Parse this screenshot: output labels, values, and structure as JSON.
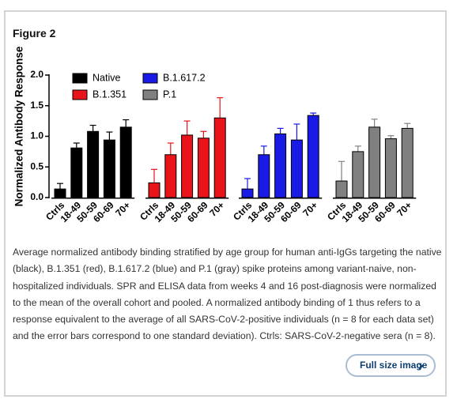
{
  "figure_label": "Figure 2",
  "chart_data": {
    "type": "grouped-bar",
    "y_label": "Normalized Antibody Response",
    "categories": [
      "Ctrls",
      "18-49",
      "50-59",
      "60-69",
      "70+"
    ],
    "ylim": [
      0,
      2.0
    ],
    "yticks": [
      {
        "value": 0,
        "label": "0.0"
      },
      0.5,
      {
        "value": 1,
        "label": "1.0"
      },
      1.5,
      {
        "value": 2,
        "label": "2.0"
      }
    ],
    "series": [
      {
        "name": "Native",
        "color": "#000000",
        "values": [
          0.14,
          0.81,
          1.08,
          0.94,
          1.15
        ],
        "errors": [
          0.09,
          0.08,
          0.1,
          0.13,
          0.12
        ]
      },
      {
        "name": "B.1.351",
        "color": "#e8141a",
        "values": [
          0.24,
          0.7,
          1.02,
          0.97,
          1.3
        ],
        "errors": [
          0.22,
          0.19,
          0.23,
          0.11,
          0.33
        ]
      },
      {
        "name": "B.1.617.2",
        "color": "#1a1ae6",
        "values": [
          0.14,
          0.7,
          1.04,
          0.94,
          1.34
        ],
        "errors": [
          0.17,
          0.14,
          0.09,
          0.26,
          0.04
        ]
      },
      {
        "name": "P.1",
        "color": "#808080",
        "values": [
          0.27,
          0.75,
          1.15,
          0.96,
          1.13
        ],
        "errors": [
          0.32,
          0.09,
          0.13,
          0.05,
          0.08
        ]
      }
    ]
  },
  "caption": "Average normalized antibody binding stratified by age group for human anti-IgGs targeting the native (black), B.1.351 (red), B.1.617.2 (blue) and P.1 (gray) spike proteins among variant-naive, non-hospitalized individuals. SPR and ELISA data from weeks 4 and 16 post-diagnosis were normalized to the mean of the overall cohort and pooled. A normalized antibody binding of 1 thus refers to a response equivalent to the average of all SARS-CoV-2-positive individuals (n = 8 for each data set) and the error bars correspond to one standard deviation). Ctrls: SARS-CoV-2-negative sera (n = 8).",
  "button_label": "Full size image"
}
